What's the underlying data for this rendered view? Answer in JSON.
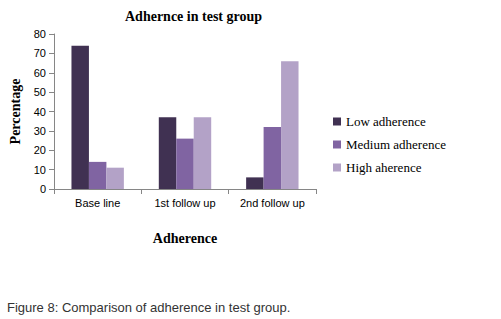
{
  "chart_data": {
    "type": "bar",
    "title": "Adhernce in test group",
    "x_label": "Adherence",
    "y_label": "Percentage",
    "caption": "Figure 8: Comparison of adherence in test group.",
    "categories": [
      "Base line",
      "1st follow up",
      "2nd follow up"
    ],
    "series": [
      {
        "name": "Low adherence",
        "color": "#403152",
        "values": [
          74,
          37,
          6
        ]
      },
      {
        "name": "Medium adherence",
        "color": "#8064a2",
        "values": [
          14,
          26,
          32
        ]
      },
      {
        "name": "High aherence",
        "color": "#b3a2c7",
        "values": [
          11,
          37,
          66
        ]
      }
    ],
    "ylim": [
      0,
      80
    ],
    "yticks": [
      0,
      10,
      20,
      30,
      40,
      50,
      60,
      70,
      80
    ],
    "grid": false,
    "legend": "right"
  }
}
